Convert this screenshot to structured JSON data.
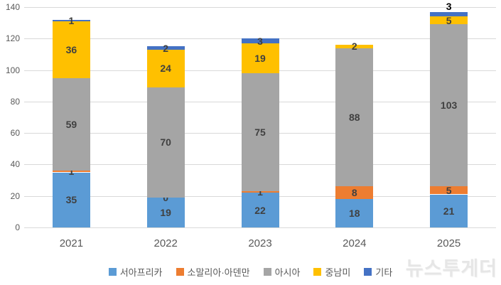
{
  "watermark": "뉴스투게더",
  "chart_data": {
    "type": "bar",
    "stacked": true,
    "title": "",
    "xlabel": "",
    "ylabel": "",
    "categories": [
      "2021",
      "2022",
      "2023",
      "2024",
      "2025"
    ],
    "series": [
      {
        "name": "서아프리카",
        "key": "west-africa",
        "color": "#5b9bd5",
        "values": [
          35,
          19,
          22,
          18,
          21
        ]
      },
      {
        "name": "소말리아·아덴만",
        "key": "somalia-aden",
        "color": "#ed7d31",
        "values": [
          1,
          0,
          1,
          8,
          5
        ]
      },
      {
        "name": "아시아",
        "key": "asia",
        "color": "#a5a5a5",
        "values": [
          59,
          70,
          75,
          88,
          103
        ]
      },
      {
        "name": "중남미",
        "key": "latin-america",
        "color": "#ffc000",
        "values": [
          36,
          24,
          19,
          2,
          5
        ]
      },
      {
        "name": "기타",
        "key": "others",
        "color": "#4472c4",
        "values": [
          1,
          2,
          3,
          0,
          3
        ]
      }
    ],
    "totals": [
      132,
      115,
      120,
      116,
      137
    ],
    "ylim": [
      0,
      140
    ],
    "ytick_step": 20,
    "grid": true,
    "legend_position": "bottom",
    "data_label_color": "#404040",
    "gridline_color": "#d9d9d9",
    "hidden_labels": [
      {
        "series": "기타",
        "category": "2024"
      }
    ],
    "above_bar_labels": [
      {
        "series": "기타",
        "category": "2025"
      }
    ]
  }
}
